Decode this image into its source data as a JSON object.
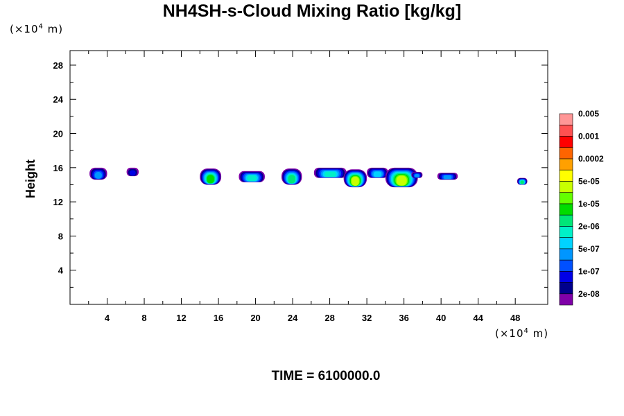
{
  "title": "NH4SH-s-Cloud Mixing Ratio [kg/kg]",
  "unit_y": {
    "prefix": "(×10",
    "exp": "4",
    "suffix": " m)"
  },
  "unit_x": {
    "prefix": "(×10",
    "exp": "4",
    "suffix": " m)"
  },
  "time_label": "TIME = 6100000.0",
  "chart_data": {
    "type": "heatmap",
    "title": "NH4SH-s-Cloud Mixing Ratio [kg/kg]",
    "xlabel": "",
    "ylabel": "Height",
    "xlim": [
      0,
      51.5
    ],
    "ylim": [
      0,
      29.7
    ],
    "x_ticks": [
      4,
      8,
      12,
      16,
      20,
      24,
      28,
      32,
      36,
      40,
      44,
      48
    ],
    "y_ticks": [
      4,
      8,
      12,
      16,
      20,
      24,
      28
    ],
    "grid": false,
    "colorbar": {
      "colors": [
        "#7f00a8",
        "#00008c",
        "#0000e6",
        "#0050ff",
        "#0096ff",
        "#00d2ff",
        "#00f0c8",
        "#00e678",
        "#00dc00",
        "#64ff00",
        "#c8ff00",
        "#ffff00",
        "#ffa000",
        "#ff6400",
        "#ff0000",
        "#ff5050",
        "#ff9696"
      ],
      "labels": [
        "2e-08",
        "1e-07",
        "5e-07",
        "2e-06",
        "1e-05",
        "5e-05",
        "0.0002",
        "0.001",
        "0.005"
      ]
    },
    "clouds": [
      {
        "x": [
          2.1,
          4.0
        ],
        "y": [
          14.6,
          16.0
        ],
        "core": 4
      },
      {
        "x": [
          6.1,
          7.4
        ],
        "y": [
          15.0,
          16.0
        ],
        "core": 2
      },
      {
        "x": [
          14.0,
          16.3
        ],
        "y": [
          14.0,
          15.9
        ],
        "core": 8
      },
      {
        "x": [
          18.2,
          21.0
        ],
        "y": [
          14.3,
          15.6
        ],
        "core": 6
      },
      {
        "x": [
          22.8,
          25.0
        ],
        "y": [
          14.0,
          15.9
        ],
        "core": 7
      },
      {
        "x": [
          26.3,
          29.8
        ],
        "y": [
          14.8,
          16.0
        ],
        "core": 6
      },
      {
        "x": [
          29.5,
          32.0
        ],
        "y": [
          13.7,
          15.8
        ],
        "core": 10
      },
      {
        "x": [
          32.0,
          34.3
        ],
        "y": [
          14.8,
          16.0
        ],
        "core": 5
      },
      {
        "x": [
          34.0,
          37.5
        ],
        "y": [
          13.7,
          16.0
        ],
        "core": 10
      },
      {
        "x": [
          36.8,
          38.0
        ],
        "y": [
          14.8,
          15.5
        ],
        "core": 4
      },
      {
        "x": [
          39.6,
          41.8
        ],
        "y": [
          14.6,
          15.4
        ],
        "core": 4
      },
      {
        "x": [
          48.2,
          49.3
        ],
        "y": [
          14.0,
          14.8
        ],
        "core": 7
      }
    ]
  }
}
